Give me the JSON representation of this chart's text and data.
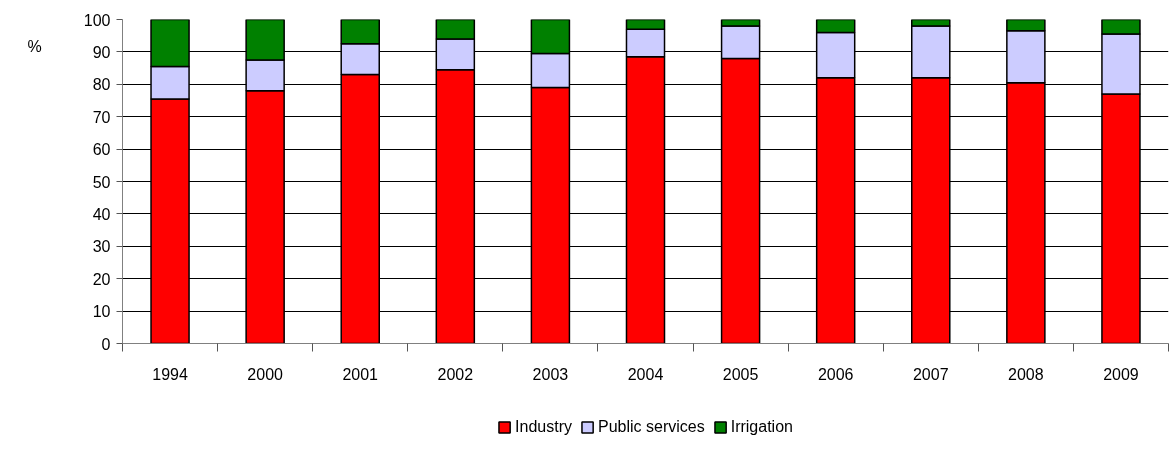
{
  "chart_data": {
    "type": "bar",
    "stacked": true,
    "ylabel": "%",
    "categories": [
      "1994",
      "2000",
      "2001",
      "2002",
      "2003",
      "2004",
      "2005",
      "2006",
      "2007",
      "2008",
      "2009"
    ],
    "series": [
      {
        "name": "Industry",
        "color": "#ff0000",
        "values": [
          75.5,
          78,
          83,
          84.5,
          79,
          88.5,
          88,
          82,
          82,
          80.5,
          77
        ]
      },
      {
        "name": "Public services",
        "color": "#ccccff",
        "values": [
          10,
          9.5,
          9.5,
          9.5,
          10.5,
          8.5,
          10,
          14,
          16,
          16,
          18.5
        ]
      },
      {
        "name": "Irrigation",
        "color": "#008000",
        "values": [
          14.5,
          12.5,
          7.5,
          6,
          10.5,
          3,
          2,
          4,
          2,
          3.5,
          4.5
        ]
      }
    ],
    "ylim": [
      0,
      100
    ],
    "yticks": [
      0,
      10,
      20,
      30,
      40,
      50,
      60,
      70,
      80,
      90,
      100
    ],
    "grid": "y",
    "legend": "bottom"
  }
}
